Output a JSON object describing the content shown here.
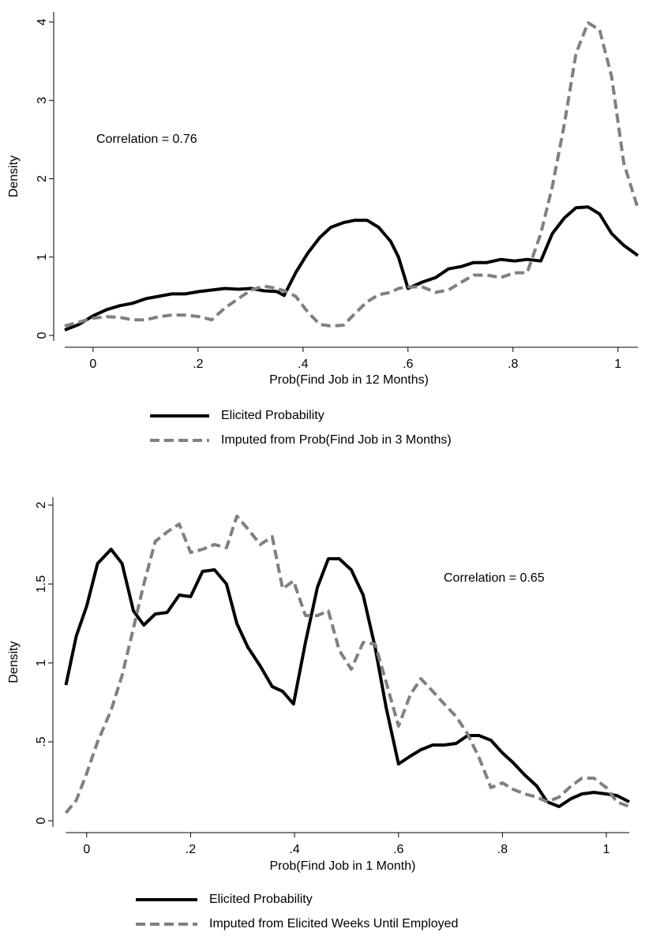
{
  "chart_data": [
    {
      "type": "line",
      "x_label": "Prob(Find Job in 12 Months)",
      "y_label": "Density",
      "annotation": "Correlation = 0.76",
      "x": [
        -0.054,
        -0.027,
        0,
        0.026,
        0.051,
        0.075,
        0.101,
        0.126,
        0.15,
        0.176,
        0.202,
        0.226,
        0.251,
        0.277,
        0.301,
        0.326,
        0.35,
        0.364,
        0.386,
        0.409,
        0.432,
        0.453,
        0.477,
        0.499,
        0.522,
        0.544,
        0.567,
        0.582,
        0.6,
        0.627,
        0.653,
        0.677,
        0.702,
        0.725,
        0.75,
        0.777,
        0.803,
        0.827,
        0.853,
        0.875,
        0.898,
        0.92,
        0.943,
        0.965,
        0.988,
        1.011,
        1.038
      ],
      "series": [
        {
          "name": "Elicited Probability",
          "color": "#000000",
          "line_style": "solid",
          "values": [
            0.07,
            0.14,
            0.25,
            0.33,
            0.38,
            0.41,
            0.47,
            0.5,
            0.53,
            0.53,
            0.56,
            0.58,
            0.6,
            0.59,
            0.6,
            0.57,
            0.56,
            0.51,
            0.8,
            1.05,
            1.25,
            1.38,
            1.44,
            1.47,
            1.47,
            1.38,
            1.2,
            1.0,
            0.6,
            0.68,
            0.74,
            0.85,
            0.88,
            0.93,
            0.93,
            0.97,
            0.95,
            0.97,
            0.95,
            1.3,
            1.5,
            1.63,
            1.64,
            1.55,
            1.3,
            1.15,
            1.02
          ]
        },
        {
          "name": "Imputed from Prob(Find Job in 3 Months)",
          "color": "#808080",
          "line_style": "dashed",
          "values": [
            0.12,
            0.17,
            0.22,
            0.24,
            0.23,
            0.2,
            0.2,
            0.24,
            0.26,
            0.26,
            0.24,
            0.2,
            0.35,
            0.47,
            0.58,
            0.63,
            0.6,
            0.57,
            0.5,
            0.3,
            0.14,
            0.12,
            0.13,
            0.28,
            0.43,
            0.52,
            0.55,
            0.6,
            0.62,
            0.62,
            0.55,
            0.58,
            0.68,
            0.77,
            0.77,
            0.74,
            0.8,
            0.8,
            1.3,
            1.9,
            2.7,
            3.6,
            3.99,
            3.9,
            3.3,
            2.2,
            1.62
          ]
        }
      ],
      "xlim": [
        -0.075,
        1.05
      ],
      "xticks": [
        {
          "value": 0,
          "label": "0"
        },
        {
          "value": 0.2,
          "label": ".2"
        },
        {
          "value": 0.4,
          "label": ".4"
        },
        {
          "value": 0.6,
          "label": ".6"
        },
        {
          "value": 0.8,
          "label": ".8"
        },
        {
          "value": 1,
          "label": "1"
        }
      ],
      "ylim": [
        -0.07,
        4.13
      ],
      "yticks": [
        0,
        1,
        2,
        3,
        4
      ],
      "grid": false,
      "legend": "bottom"
    },
    {
      "type": "line",
      "x_label": "Prob(Find Job in 1 Month)",
      "y_label": "Density",
      "annotation": "Correlation = 0.65",
      "x": [
        -0.04,
        -0.02,
        0,
        0.021,
        0.047,
        0.068,
        0.09,
        0.11,
        0.132,
        0.155,
        0.178,
        0.2,
        0.223,
        0.246,
        0.269,
        0.289,
        0.31,
        0.334,
        0.357,
        0.377,
        0.398,
        0.421,
        0.444,
        0.465,
        0.486,
        0.509,
        0.532,
        0.555,
        0.576,
        0.6,
        0.623,
        0.643,
        0.666,
        0.688,
        0.711,
        0.733,
        0.755,
        0.778,
        0.8,
        0.82,
        0.843,
        0.866,
        0.886,
        0.909,
        0.932,
        0.953,
        0.976,
        1.0,
        1.02,
        1.044
      ],
      "series": [
        {
          "name": "Elicited Probability",
          "color": "#000000",
          "line_style": "solid",
          "values": [
            0.86,
            1.17,
            1.36,
            1.63,
            1.72,
            1.63,
            1.33,
            1.24,
            1.31,
            1.32,
            1.43,
            1.42,
            1.58,
            1.59,
            1.5,
            1.25,
            1.1,
            0.98,
            0.85,
            0.82,
            0.74,
            1.13,
            1.48,
            1.66,
            1.66,
            1.59,
            1.43,
            1.1,
            0.72,
            0.36,
            0.41,
            0.45,
            0.48,
            0.48,
            0.49,
            0.54,
            0.54,
            0.51,
            0.43,
            0.37,
            0.29,
            0.22,
            0.12,
            0.09,
            0.14,
            0.17,
            0.18,
            0.17,
            0.16,
            0.12
          ]
        },
        {
          "name": "Imputed from Elicited Weeks Until Employed",
          "color": "#808080",
          "line_style": "dashed",
          "values": [
            0.05,
            0.13,
            0.3,
            0.5,
            0.7,
            0.92,
            1.22,
            1.5,
            1.77,
            1.83,
            1.88,
            1.7,
            1.72,
            1.75,
            1.73,
            1.93,
            1.85,
            1.75,
            1.8,
            1.47,
            1.52,
            1.3,
            1.3,
            1.33,
            1.08,
            0.96,
            1.13,
            1.12,
            0.88,
            0.6,
            0.8,
            0.9,
            0.82,
            0.74,
            0.66,
            0.55,
            0.4,
            0.21,
            0.24,
            0.2,
            0.17,
            0.15,
            0.12,
            0.15,
            0.22,
            0.27,
            0.27,
            0.21,
            0.12,
            0.09
          ]
        }
      ],
      "xlim": [
        -0.065,
        1.05
      ],
      "xticks": [
        {
          "value": 0,
          "label": "0"
        },
        {
          "value": 0.2,
          "label": ".2"
        },
        {
          "value": 0.4,
          "label": ".4"
        },
        {
          "value": 0.6,
          "label": ".6"
        },
        {
          "value": 0.8,
          "label": ".8"
        },
        {
          "value": 1,
          "label": "1"
        }
      ],
      "ylim": [
        -0.04,
        2.05
      ],
      "yticks": [
        0,
        {
          "value": 0.5,
          "label": ".5"
        },
        1,
        1.5,
        2
      ],
      "grid": false,
      "legend": "bottom"
    }
  ]
}
